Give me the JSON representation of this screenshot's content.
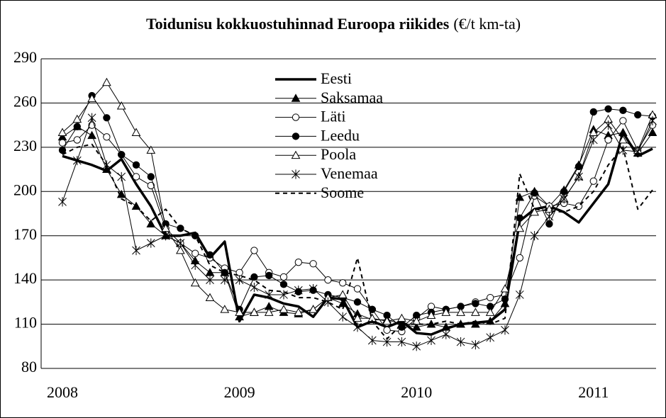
{
  "chart_data": {
    "type": "line",
    "title": "Toidunisu kokkuostuhinnad Euroopa riikides",
    "title_unit": "(€/t km-ta)",
    "categories": [
      "2008",
      null,
      null,
      null,
      null,
      null,
      null,
      null,
      null,
      null,
      null,
      null,
      "2009",
      null,
      null,
      null,
      null,
      null,
      null,
      null,
      null,
      null,
      null,
      null,
      "2010",
      null,
      null,
      null,
      null,
      null,
      null,
      null,
      null,
      null,
      null,
      null,
      "2011",
      null,
      null,
      null,
      null
    ],
    "ylim": [
      80,
      290
    ],
    "yticks": [
      80,
      110,
      140,
      170,
      200,
      230,
      260,
      290
    ],
    "grid": true,
    "legend": "top",
    "series": [
      {
        "name": "Eesti",
        "color": "#000000",
        "width": 3.5,
        "marker": "none",
        "values": [
          224,
          221,
          218,
          214,
          222,
          205,
          190,
          170,
          170,
          172,
          155,
          166,
          112,
          130,
          128,
          124,
          122,
          115,
          128,
          127,
          108,
          112,
          108,
          112,
          104,
          103,
          107,
          110,
          111,
          112,
          120,
          180,
          188,
          190,
          186,
          179,
          192,
          205,
          240,
          224,
          229
        ]
      },
      {
        "name": "Saksamaa",
        "color": "#000000",
        "width": 1,
        "marker": "triangle-filled",
        "values": [
          237,
          244,
          238,
          215,
          198,
          190,
          178,
          170,
          165,
          153,
          145,
          145,
          115,
          118,
          122,
          118,
          117,
          120,
          128,
          124,
          117,
          113,
          113,
          110,
          108,
          110,
          108,
          110,
          110,
          112,
          124,
          196,
          200,
          190,
          201,
          218,
          242,
          238,
          240,
          226,
          240
        ]
      },
      {
        "name": "Läti",
        "color": "#000000",
        "width": 1,
        "marker": "circle-open",
        "values": [
          233,
          235,
          245,
          237,
          225,
          210,
          204,
          175,
          165,
          158,
          155,
          148,
          145,
          160,
          145,
          142,
          152,
          151,
          140,
          138,
          134,
          120,
          106,
          105,
          114,
          122,
          120,
          122,
          125,
          128,
          130,
          155,
          197,
          190,
          192,
          190,
          207,
          235,
          248,
          228,
          245
        ]
      },
      {
        "name": "Leedu",
        "color": "#000000",
        "width": 1,
        "marker": "circle-filled",
        "values": [
          228,
          244,
          265,
          250,
          225,
          218,
          210,
          178,
          175,
          170,
          157,
          145,
          120,
          142,
          143,
          137,
          132,
          133,
          130,
          128,
          125,
          120,
          116,
          108,
          116,
          118,
          120,
          122,
          124,
          122,
          127,
          182,
          199,
          178,
          200,
          217,
          254,
          256,
          255,
          252,
          251
        ]
      },
      {
        "name": "Poola",
        "color": "#000000",
        "width": 1,
        "marker": "triangle-open",
        "values": [
          240,
          249,
          263,
          274,
          258,
          240,
          228,
          175,
          160,
          138,
          128,
          120,
          118,
          118,
          118,
          120,
          118,
          120,
          128,
          130,
          114,
          114,
          112,
          114,
          112,
          116,
          118,
          118,
          118,
          118,
          134,
          175,
          186,
          188,
          195,
          210,
          240,
          249,
          235,
          228,
          252
        ]
      },
      {
        "name": "Venemaa",
        "color": "#000000",
        "width": 1,
        "marker": "asterisk",
        "values": [
          193,
          221,
          250,
          218,
          210,
          160,
          165,
          170,
          165,
          150,
          140,
          140,
          140,
          135,
          130,
          130,
          133,
          134,
          125,
          115,
          108,
          99,
          98,
          98,
          95,
          99,
          103,
          98,
          96,
          101,
          106,
          130,
          170,
          183,
          195,
          210,
          235,
          245,
          228,
          227,
          248
        ]
      },
      {
        "name": "Soome",
        "color": "#000000",
        "width": 2,
        "marker": "none",
        "dash": "6 5",
        "values": [
          225,
          230,
          232,
          218,
          195,
          190,
          180,
          188,
          175,
          170,
          150,
          145,
          143,
          140,
          133,
          132,
          128,
          128,
          125,
          120,
          155,
          112,
          100,
          110,
          110,
          110,
          112,
          110,
          112,
          110,
          114,
          212,
          188,
          187,
          186,
          190,
          200,
          218,
          230,
          188,
          201
        ]
      }
    ]
  }
}
